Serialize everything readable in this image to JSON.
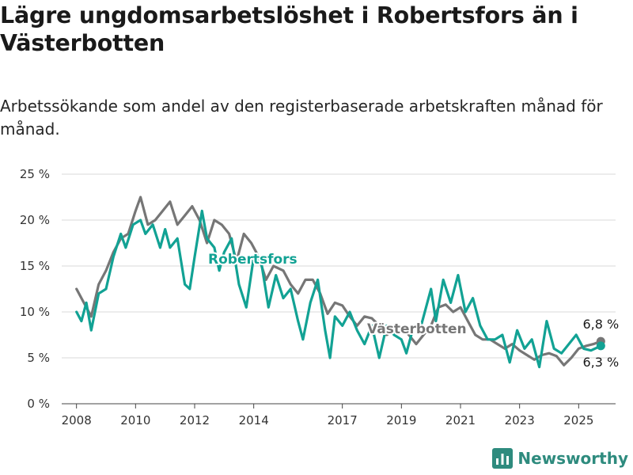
{
  "header": {
    "title": "Lägre ungdomsarbetslöshet i Robertsfors än i Västerbotten",
    "subtitle": "Arbetssökande som andel av den registerbaserade arbetskraften månad för månad."
  },
  "brand": {
    "name": "Newsworthy",
    "icon": "bar-chart-logo-icon",
    "color": "#2e8b7e"
  },
  "colors": {
    "robertsfors": "#12a294",
    "vasterbotten": "#767676",
    "grid": "#d9d9d9"
  },
  "chart_data": {
    "type": "line",
    "title": "Lägre ungdomsarbetslöshet i Robertsfors än i Västerbotten",
    "subtitle": "Arbetssökande som andel av den registerbaserade arbetskraften månad för månad.",
    "ylim": [
      0,
      25
    ],
    "xlim": [
      "2007-07",
      "2026-04"
    ],
    "y_ticks": [
      "0 %",
      "5 %",
      "10 %",
      "15 %",
      "20 %",
      "25 %"
    ],
    "x_ticks": [
      "2008",
      "2010",
      "2012",
      "2014",
      "2017",
      "2019",
      "2021",
      "2023",
      "2025"
    ],
    "grid": "horizontal",
    "series": [
      {
        "name": "Västerbotten",
        "color": "#767676",
        "end_label": "6,8 %",
        "points": [
          [
            "2008-01",
            12.5
          ],
          [
            "2008-04",
            11.0
          ],
          [
            "2008-07",
            9.5
          ],
          [
            "2008-10",
            13.0
          ],
          [
            "2009-01",
            14.5
          ],
          [
            "2009-04",
            16.5
          ],
          [
            "2009-07",
            18.0
          ],
          [
            "2009-10",
            18.5
          ],
          [
            "2010-01",
            21.0
          ],
          [
            "2010-03",
            22.5
          ],
          [
            "2010-06",
            19.5
          ],
          [
            "2010-09",
            20.0
          ],
          [
            "2010-12",
            21.0
          ],
          [
            "2011-03",
            22.0
          ],
          [
            "2011-06",
            19.5
          ],
          [
            "2011-09",
            20.5
          ],
          [
            "2011-12",
            21.5
          ],
          [
            "2012-03",
            20.0
          ],
          [
            "2012-06",
            17.5
          ],
          [
            "2012-09",
            20.0
          ],
          [
            "2012-12",
            19.5
          ],
          [
            "2013-03",
            18.5
          ],
          [
            "2013-06",
            15.5
          ],
          [
            "2013-09",
            18.5
          ],
          [
            "2013-12",
            17.5
          ],
          [
            "2014-03",
            16.0
          ],
          [
            "2014-06",
            13.5
          ],
          [
            "2014-09",
            15.0
          ],
          [
            "2015-01",
            14.5
          ],
          [
            "2015-04",
            13.0
          ],
          [
            "2015-07",
            12.0
          ],
          [
            "2015-10",
            13.5
          ],
          [
            "2016-01",
            13.5
          ],
          [
            "2016-04",
            12.0
          ],
          [
            "2016-07",
            9.8
          ],
          [
            "2016-10",
            11.0
          ],
          [
            "2017-01",
            10.7
          ],
          [
            "2017-04",
            9.5
          ],
          [
            "2017-07",
            8.5
          ],
          [
            "2017-10",
            9.5
          ],
          [
            "2018-01",
            9.3
          ],
          [
            "2018-04",
            8.5
          ],
          [
            "2018-07",
            7.5
          ],
          [
            "2018-10",
            8.0
          ],
          [
            "2019-01",
            8.3
          ],
          [
            "2019-04",
            7.5
          ],
          [
            "2019-07",
            6.5
          ],
          [
            "2019-10",
            7.5
          ],
          [
            "2020-01",
            8.5
          ],
          [
            "2020-04",
            10.5
          ],
          [
            "2020-07",
            10.8
          ],
          [
            "2020-10",
            10.0
          ],
          [
            "2021-01",
            10.5
          ],
          [
            "2021-04",
            9.0
          ],
          [
            "2021-07",
            7.5
          ],
          [
            "2021-10",
            7.0
          ],
          [
            "2022-01",
            7.0
          ],
          [
            "2022-04",
            6.5
          ],
          [
            "2022-07",
            6.0
          ],
          [
            "2022-10",
            6.5
          ],
          [
            "2023-01",
            5.8
          ],
          [
            "2023-04",
            5.3
          ],
          [
            "2023-07",
            4.8
          ],
          [
            "2023-10",
            5.3
          ],
          [
            "2024-01",
            5.5
          ],
          [
            "2024-04",
            5.2
          ],
          [
            "2024-07",
            4.2
          ],
          [
            "2024-10",
            5.0
          ],
          [
            "2025-01",
            6.0
          ],
          [
            "2025-04",
            6.3
          ],
          [
            "2025-07",
            6.5
          ],
          [
            "2025-10",
            6.8
          ]
        ]
      },
      {
        "name": "Robertsfors",
        "color": "#12a294",
        "end_label": "6,3 %",
        "points": [
          [
            "2008-01",
            10.0
          ],
          [
            "2008-03",
            9.0
          ],
          [
            "2008-05",
            11.0
          ],
          [
            "2008-07",
            8.0
          ],
          [
            "2008-10",
            12.0
          ],
          [
            "2009-01",
            12.5
          ],
          [
            "2009-04",
            16.0
          ],
          [
            "2009-07",
            18.5
          ],
          [
            "2009-09",
            17.0
          ],
          [
            "2009-12",
            19.5
          ],
          [
            "2010-03",
            20.0
          ],
          [
            "2010-05",
            18.5
          ],
          [
            "2010-08",
            19.5
          ],
          [
            "2010-11",
            17.0
          ],
          [
            "2011-01",
            19.0
          ],
          [
            "2011-03",
            17.0
          ],
          [
            "2011-06",
            18.0
          ],
          [
            "2011-09",
            13.0
          ],
          [
            "2011-11",
            12.5
          ],
          [
            "2012-01",
            16.0
          ],
          [
            "2012-04",
            21.0
          ],
          [
            "2012-06",
            18.0
          ],
          [
            "2012-09",
            17.0
          ],
          [
            "2012-11",
            14.5
          ],
          [
            "2013-01",
            16.5
          ],
          [
            "2013-04",
            18.0
          ],
          [
            "2013-07",
            13.0
          ],
          [
            "2013-10",
            10.5
          ],
          [
            "2014-01",
            16.0
          ],
          [
            "2014-04",
            15.5
          ],
          [
            "2014-07",
            10.5
          ],
          [
            "2014-10",
            14.0
          ],
          [
            "2015-01",
            11.5
          ],
          [
            "2015-04",
            12.5
          ],
          [
            "2015-07",
            9.0
          ],
          [
            "2015-09",
            7.0
          ],
          [
            "2015-12",
            11.0
          ],
          [
            "2016-03",
            13.5
          ],
          [
            "2016-06",
            8.0
          ],
          [
            "2016-08",
            5.0
          ],
          [
            "2016-10",
            9.5
          ],
          [
            "2017-01",
            8.5
          ],
          [
            "2017-04",
            10.0
          ],
          [
            "2017-07",
            8.0
          ],
          [
            "2017-10",
            6.5
          ],
          [
            "2018-01",
            8.5
          ],
          [
            "2018-04",
            5.0
          ],
          [
            "2018-07",
            8.5
          ],
          [
            "2018-10",
            7.5
          ],
          [
            "2019-01",
            7.0
          ],
          [
            "2019-03",
            5.5
          ],
          [
            "2019-06",
            8.5
          ],
          [
            "2019-09",
            8.5
          ],
          [
            "2020-01",
            12.5
          ],
          [
            "2020-03",
            9.0
          ],
          [
            "2020-06",
            13.5
          ],
          [
            "2020-09",
            11.0
          ],
          [
            "2020-12",
            14.0
          ],
          [
            "2021-03",
            10.0
          ],
          [
            "2021-06",
            11.5
          ],
          [
            "2021-09",
            8.5
          ],
          [
            "2021-12",
            7.0
          ],
          [
            "2022-03",
            7.0
          ],
          [
            "2022-06",
            7.5
          ],
          [
            "2022-09",
            4.5
          ],
          [
            "2022-12",
            8.0
          ],
          [
            "2023-03",
            6.0
          ],
          [
            "2023-06",
            7.0
          ],
          [
            "2023-09",
            4.0
          ],
          [
            "2023-12",
            9.0
          ],
          [
            "2024-03",
            6.0
          ],
          [
            "2024-06",
            5.5
          ],
          [
            "2024-09",
            6.5
          ],
          [
            "2024-12",
            7.5
          ],
          [
            "2025-03",
            6.0
          ],
          [
            "2025-06",
            5.8
          ],
          [
            "2025-10",
            6.3
          ]
        ]
      }
    ],
    "annotations": [
      {
        "text": "Robertsfors",
        "series": "Robertsfors"
      },
      {
        "text": "Västerbotten",
        "series": "Västerbotten"
      }
    ]
  }
}
